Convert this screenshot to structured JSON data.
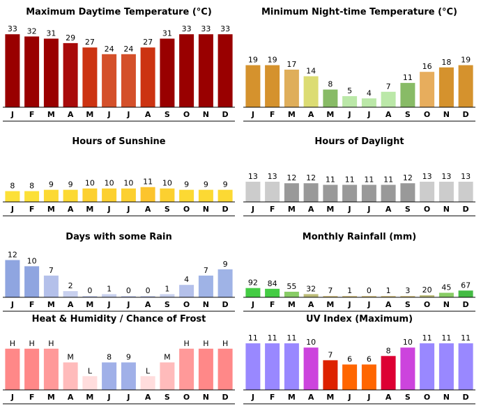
{
  "months": [
    "J",
    "F",
    "M",
    "A",
    "M",
    "J",
    "J",
    "A",
    "S",
    "O",
    "N",
    "D"
  ],
  "chart_data": [
    {
      "type": "bar",
      "title": "Maximum Daytime Temperature (°C)",
      "categories": [
        "J",
        "F",
        "M",
        "A",
        "M",
        "J",
        "J",
        "A",
        "S",
        "O",
        "N",
        "D"
      ],
      "values": [
        33,
        32,
        31,
        29,
        27,
        24,
        24,
        27,
        31,
        33,
        33,
        33
      ],
      "labels": [
        "33",
        "32",
        "31",
        "29",
        "27",
        "24",
        "24",
        "27",
        "31",
        "33",
        "33",
        "33"
      ],
      "ylim": [
        0,
        34
      ],
      "colors": [
        "#990000",
        "#990000",
        "#990000",
        "#a80a0a",
        "#cc3311",
        "#d4502a",
        "#d4502a",
        "#cc3311",
        "#990000",
        "#990000",
        "#990000",
        "#990000"
      ]
    },
    {
      "type": "bar",
      "title": "Minimum Night-time Temperature (°C)",
      "categories": [
        "J",
        "F",
        "M",
        "A",
        "M",
        "J",
        "J",
        "A",
        "S",
        "O",
        "N",
        "D"
      ],
      "values": [
        19,
        19,
        17,
        14,
        8,
        5,
        4,
        7,
        11,
        16,
        18,
        19
      ],
      "labels": [
        "19",
        "19",
        "17",
        "14",
        "8",
        "5",
        "4",
        "7",
        "11",
        "16",
        "18",
        "19"
      ],
      "ylim": [
        0,
        34
      ],
      "colors": [
        "#d5922d",
        "#d5922d",
        "#dfae5a",
        "#dcdc73",
        "#88bb66",
        "#bbe8a8",
        "#bbe8a8",
        "#bbe8a8",
        "#88bb66",
        "#e7ad5d",
        "#d5922d",
        "#d5922d"
      ]
    },
    {
      "type": "bar",
      "title": "Hours of Sunshine",
      "categories": [
        "J",
        "F",
        "M",
        "A",
        "M",
        "J",
        "J",
        "A",
        "S",
        "O",
        "N",
        "D"
      ],
      "values": [
        8,
        8,
        9,
        9,
        10,
        10,
        10,
        11,
        10,
        9,
        9,
        9
      ],
      "labels": [
        "8",
        "8",
        "9",
        "9",
        "10",
        "10",
        "10",
        "11",
        "10",
        "9",
        "9",
        "9"
      ],
      "ylim": [
        0,
        30
      ],
      "colors": [
        "#fce037",
        "#fce037",
        "#fcd933",
        "#fcd933",
        "#fcd030",
        "#fcd030",
        "#fcd030",
        "#fcc42d",
        "#fcd030",
        "#fcd933",
        "#fcd933",
        "#fcd933"
      ]
    },
    {
      "type": "bar",
      "title": "Hours of Daylight",
      "categories": [
        "J",
        "F",
        "M",
        "A",
        "M",
        "J",
        "J",
        "A",
        "S",
        "O",
        "N",
        "D"
      ],
      "values": [
        13,
        13,
        12,
        12,
        11,
        11,
        11,
        11,
        12,
        13,
        13,
        13
      ],
      "labels": [
        "13",
        "13",
        "12",
        "12",
        "11",
        "11",
        "11",
        "11",
        "12",
        "13",
        "13",
        "13"
      ],
      "ylim": [
        0,
        26
      ],
      "colors": [
        "#cccccc",
        "#cccccc",
        "#999999",
        "#999999",
        "#999999",
        "#999999",
        "#999999",
        "#999999",
        "#999999",
        "#cccccc",
        "#cccccc",
        "#cccccc"
      ]
    },
    {
      "type": "bar",
      "title": "Days with some Rain",
      "categories": [
        "J",
        "F",
        "M",
        "A",
        "M",
        "J",
        "J",
        "A",
        "S",
        "O",
        "N",
        "D"
      ],
      "values": [
        12,
        10,
        7,
        2,
        0,
        1,
        0,
        0,
        1,
        4,
        7,
        9
      ],
      "labels": [
        "12",
        "10",
        "7",
        "2",
        "0",
        "1",
        "0",
        "0",
        "1",
        "4",
        "7",
        "9"
      ],
      "ylim": [
        0,
        13
      ],
      "colors": [
        "#8fa5e0",
        "#8fa5e0",
        "#b4c0ea",
        "#c8d0ee",
        "#c8d0ee",
        "#c8d0ee",
        "#c8d0ee",
        "#c8d0ee",
        "#c8d0ee",
        "#b4c0ea",
        "#9fb3e6",
        "#9fb3e6"
      ]
    },
    {
      "type": "bar",
      "title": "Monthly Rainfall (mm)",
      "categories": [
        "J",
        "F",
        "M",
        "A",
        "M",
        "J",
        "J",
        "A",
        "S",
        "O",
        "N",
        "D"
      ],
      "values": [
        92,
        84,
        55,
        32,
        7,
        1,
        0,
        1,
        3,
        20,
        45,
        67
      ],
      "labels": [
        "92",
        "84",
        "55",
        "32",
        "7",
        "1",
        "0",
        "1",
        "3",
        "20",
        "45",
        "67"
      ],
      "ylim": [
        0,
        400
      ],
      "colors": [
        "#44cc44",
        "#44cc44",
        "#88cc66",
        "#bbbb77",
        "#d4c48a",
        "#d4c48a",
        "#d4c48a",
        "#d4c48a",
        "#d4c48a",
        "#bbbb77",
        "#88cc66",
        "#44bb44"
      ]
    },
    {
      "type": "bar",
      "title": "Heat & Humidity / Chance of Frost",
      "categories": [
        "J",
        "F",
        "M",
        "A",
        "M",
        "J",
        "J",
        "A",
        "S",
        "O",
        "N",
        "D"
      ],
      "values": [
        3,
        3,
        3,
        2,
        1,
        2,
        2,
        1,
        2,
        3,
        3,
        3
      ],
      "labels": [
        "H",
        "H",
        "H",
        "M",
        "L",
        "8",
        "9",
        "L",
        "M",
        "H",
        "H",
        "H"
      ],
      "ylim": [
        0,
        3.7
      ],
      "colors": [
        "#ff8888",
        "#ff8888",
        "#ff9999",
        "#ffbbbb",
        "#ffdddd",
        "#a0b0e8",
        "#a0b0e8",
        "#ffdddd",
        "#ffbbbb",
        "#ff9999",
        "#ff8888",
        "#ff8888"
      ]
    },
    {
      "type": "bar",
      "title": "UV Index (Maximum)",
      "categories": [
        "J",
        "F",
        "M",
        "A",
        "M",
        "J",
        "J",
        "A",
        "S",
        "O",
        "N",
        "D"
      ],
      "values": [
        11,
        11,
        11,
        10,
        7,
        6,
        6,
        8,
        10,
        11,
        11,
        11
      ],
      "labels": [
        "11",
        "11",
        "11",
        "10",
        "7",
        "6",
        "6",
        "8",
        "10",
        "11",
        "11",
        "11"
      ],
      "ylim": [
        0,
        12
      ],
      "colors": [
        "#9988ff",
        "#9988ff",
        "#9988ff",
        "#cc44dd",
        "#dd2200",
        "#ff6600",
        "#ff6600",
        "#dd0033",
        "#cc44dd",
        "#9988ff",
        "#9988ff",
        "#9988ff"
      ]
    }
  ]
}
